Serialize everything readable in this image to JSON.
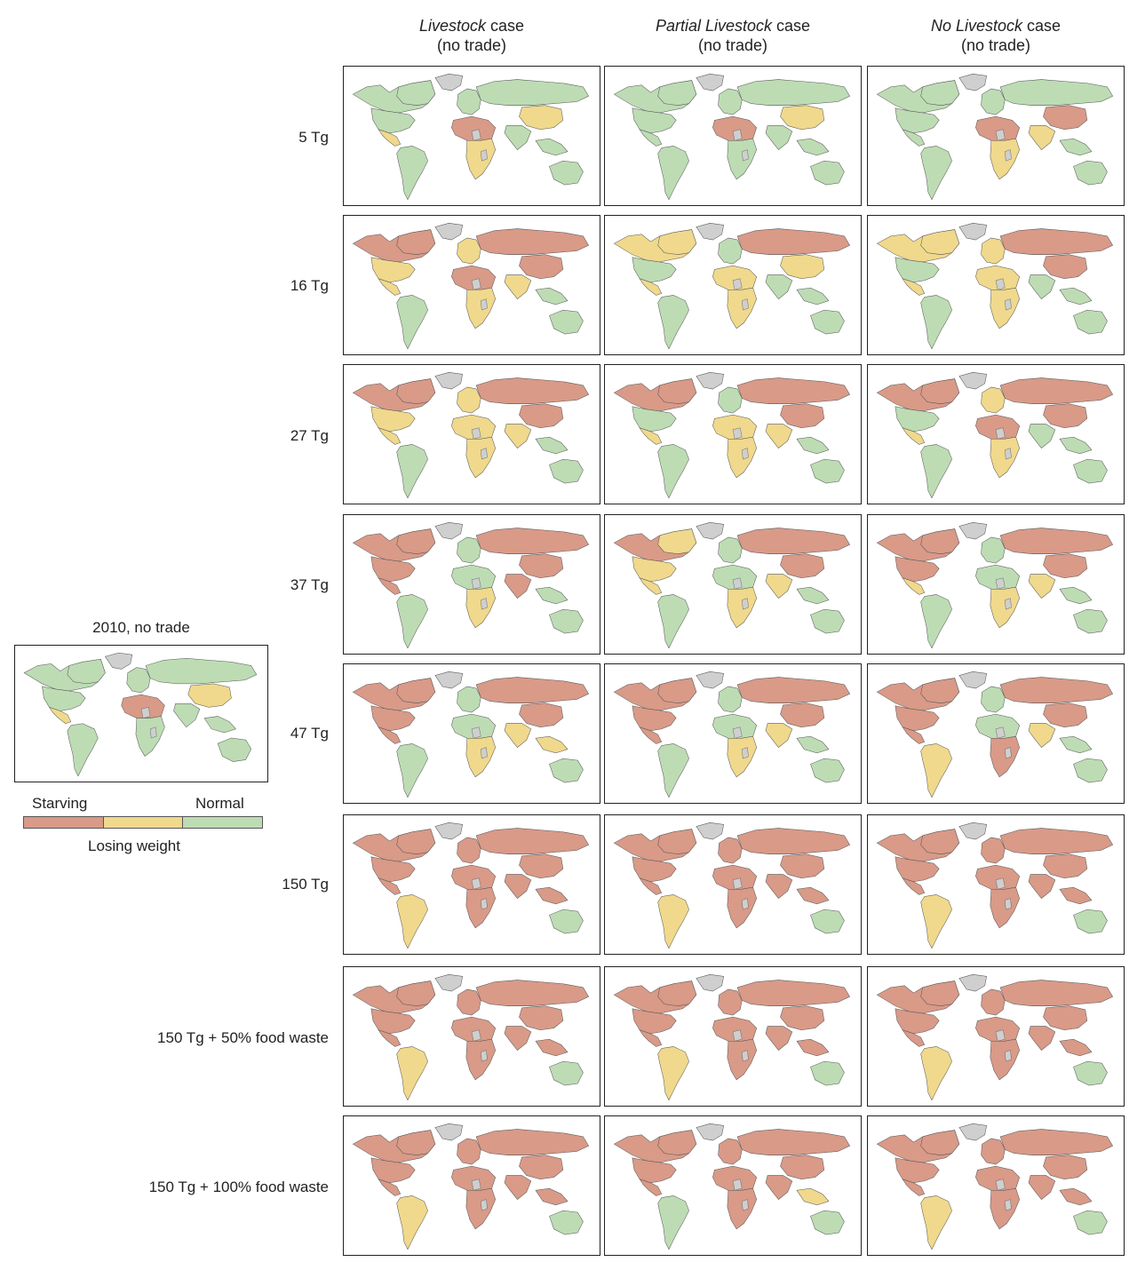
{
  "columns": [
    {
      "italic": "Livestock",
      "rest": " case",
      "sub": "(no trade)"
    },
    {
      "italic": "Partial Livestock",
      "rest": " case",
      "sub": "(no trade)"
    },
    {
      "italic": "No Livestock",
      "rest": " case",
      "sub": "(no trade)"
    }
  ],
  "rows": [
    {
      "label": "5 Tg",
      "panels": [
        {
          "na": "N",
          "ca": "N",
          "us": "N",
          "mx": "L",
          "sa": "N",
          "eu": "N",
          "ru": "N",
          "cn": "L",
          "in": "N",
          "naf": "S",
          "saf": "L",
          "sea": "N",
          "au": "N"
        },
        {
          "na": "N",
          "ca": "N",
          "us": "N",
          "mx": "N",
          "sa": "N",
          "eu": "N",
          "ru": "N",
          "cn": "L",
          "in": "N",
          "naf": "S",
          "saf": "N",
          "sea": "N",
          "au": "N"
        },
        {
          "na": "N",
          "ca": "N",
          "us": "N",
          "mx": "N",
          "sa": "N",
          "eu": "N",
          "ru": "N",
          "cn": "S",
          "in": "L",
          "naf": "S",
          "saf": "L",
          "sea": "N",
          "au": "N"
        }
      ]
    },
    {
      "label": "16 Tg",
      "panels": [
        {
          "na": "S",
          "ca": "S",
          "us": "L",
          "mx": "L",
          "sa": "N",
          "eu": "L",
          "ru": "S",
          "cn": "S",
          "in": "L",
          "naf": "S",
          "saf": "L",
          "sea": "N",
          "au": "N"
        },
        {
          "na": "L",
          "ca": "L",
          "us": "N",
          "mx": "L",
          "sa": "N",
          "eu": "N",
          "ru": "S",
          "cn": "L",
          "in": "N",
          "naf": "L",
          "saf": "L",
          "sea": "N",
          "au": "N"
        },
        {
          "na": "L",
          "ca": "L",
          "us": "N",
          "mx": "L",
          "sa": "N",
          "eu": "L",
          "ru": "S",
          "cn": "S",
          "in": "N",
          "naf": "L",
          "saf": "L",
          "sea": "N",
          "au": "N"
        }
      ]
    },
    {
      "label": "27 Tg",
      "panels": [
        {
          "na": "S",
          "ca": "S",
          "us": "L",
          "mx": "L",
          "sa": "N",
          "eu": "L",
          "ru": "S",
          "cn": "S",
          "in": "L",
          "naf": "L",
          "saf": "L",
          "sea": "N",
          "au": "N"
        },
        {
          "na": "S",
          "ca": "S",
          "us": "N",
          "mx": "L",
          "sa": "N",
          "eu": "N",
          "ru": "S",
          "cn": "S",
          "in": "L",
          "naf": "L",
          "saf": "L",
          "sea": "N",
          "au": "N"
        },
        {
          "na": "S",
          "ca": "S",
          "us": "N",
          "mx": "L",
          "sa": "N",
          "eu": "L",
          "ru": "S",
          "cn": "S",
          "in": "N",
          "naf": "S",
          "saf": "L",
          "sea": "N",
          "au": "N"
        }
      ]
    },
    {
      "label": "37 Tg",
      "panels": [
        {
          "na": "S",
          "ca": "S",
          "us": "S",
          "mx": "S",
          "sa": "N",
          "eu": "N",
          "ru": "S",
          "cn": "S",
          "in": "S",
          "naf": "N",
          "saf": "L",
          "sea": "N",
          "au": "N"
        },
        {
          "na": "S",
          "ca": "L",
          "us": "L",
          "mx": "L",
          "sa": "N",
          "eu": "N",
          "ru": "S",
          "cn": "S",
          "in": "L",
          "naf": "N",
          "saf": "L",
          "sea": "N",
          "au": "N"
        },
        {
          "na": "S",
          "ca": "S",
          "us": "S",
          "mx": "L",
          "sa": "N",
          "eu": "N",
          "ru": "S",
          "cn": "S",
          "in": "L",
          "naf": "N",
          "saf": "L",
          "sea": "N",
          "au": "N"
        }
      ]
    },
    {
      "label": "47 Tg",
      "panels": [
        {
          "na": "S",
          "ca": "S",
          "us": "S",
          "mx": "S",
          "sa": "N",
          "eu": "N",
          "ru": "S",
          "cn": "S",
          "in": "L",
          "naf": "N",
          "saf": "L",
          "sea": "L",
          "au": "N"
        },
        {
          "na": "S",
          "ca": "S",
          "us": "S",
          "mx": "S",
          "sa": "N",
          "eu": "N",
          "ru": "S",
          "cn": "S",
          "in": "L",
          "naf": "N",
          "saf": "L",
          "sea": "N",
          "au": "N"
        },
        {
          "na": "S",
          "ca": "S",
          "us": "S",
          "mx": "S",
          "sa": "L",
          "eu": "N",
          "ru": "S",
          "cn": "S",
          "in": "L",
          "naf": "N",
          "saf": "S",
          "sea": "N",
          "au": "N"
        }
      ]
    },
    {
      "label": "150 Tg",
      "panels": [
        {
          "na": "S",
          "ca": "S",
          "us": "S",
          "mx": "S",
          "sa": "L",
          "eu": "S",
          "ru": "S",
          "cn": "S",
          "in": "S",
          "naf": "S",
          "saf": "S",
          "sea": "S",
          "au": "N"
        },
        {
          "na": "S",
          "ca": "S",
          "us": "S",
          "mx": "S",
          "sa": "L",
          "eu": "S",
          "ru": "S",
          "cn": "S",
          "in": "S",
          "naf": "S",
          "saf": "S",
          "sea": "S",
          "au": "N"
        },
        {
          "na": "S",
          "ca": "S",
          "us": "S",
          "mx": "S",
          "sa": "L",
          "eu": "S",
          "ru": "S",
          "cn": "S",
          "in": "S",
          "naf": "S",
          "saf": "S",
          "sea": "S",
          "au": "N"
        }
      ]
    },
    {
      "label": "150 Tg + 50% food waste",
      "panels": [
        {
          "na": "S",
          "ca": "S",
          "us": "S",
          "mx": "S",
          "sa": "L",
          "eu": "S",
          "ru": "S",
          "cn": "S",
          "in": "S",
          "naf": "S",
          "saf": "S",
          "sea": "S",
          "au": "N"
        },
        {
          "na": "S",
          "ca": "S",
          "us": "S",
          "mx": "S",
          "sa": "L",
          "eu": "S",
          "ru": "S",
          "cn": "S",
          "in": "S",
          "naf": "S",
          "saf": "S",
          "sea": "S",
          "au": "N"
        },
        {
          "na": "S",
          "ca": "S",
          "us": "S",
          "mx": "S",
          "sa": "L",
          "eu": "S",
          "ru": "S",
          "cn": "S",
          "in": "S",
          "naf": "S",
          "saf": "S",
          "sea": "S",
          "au": "N"
        }
      ]
    },
    {
      "label": "150 Tg + 100% food waste",
      "panels": [
        {
          "na": "S",
          "ca": "S",
          "us": "S",
          "mx": "S",
          "sa": "L",
          "eu": "S",
          "ru": "S",
          "cn": "S",
          "in": "S",
          "naf": "S",
          "saf": "S",
          "sea": "S",
          "au": "N"
        },
        {
          "na": "S",
          "ca": "S",
          "us": "S",
          "mx": "S",
          "sa": "N",
          "eu": "S",
          "ru": "S",
          "cn": "S",
          "in": "S",
          "naf": "S",
          "saf": "S",
          "sea": "L",
          "au": "N"
        },
        {
          "na": "S",
          "ca": "S",
          "us": "S",
          "mx": "S",
          "sa": "L",
          "eu": "S",
          "ru": "S",
          "cn": "S",
          "in": "S",
          "naf": "S",
          "saf": "S",
          "sea": "S",
          "au": "N"
        }
      ]
    }
  ],
  "baseline": {
    "title": "2010, no trade",
    "panel": {
      "na": "N",
      "ca": "N",
      "us": "N",
      "mx": "L",
      "sa": "N",
      "eu": "N",
      "ru": "N",
      "cn": "L",
      "in": "N",
      "naf": "S",
      "saf": "N",
      "sea": "N",
      "au": "N"
    }
  },
  "legend": {
    "starving": "Starving",
    "normal": "Normal",
    "losing_weight": "Losing weight"
  },
  "colors": {
    "S": "#d99a88",
    "L": "#f0d98c",
    "N": "#bddcb4",
    "nodata": "#cfcfcf",
    "border": "#555555"
  }
}
